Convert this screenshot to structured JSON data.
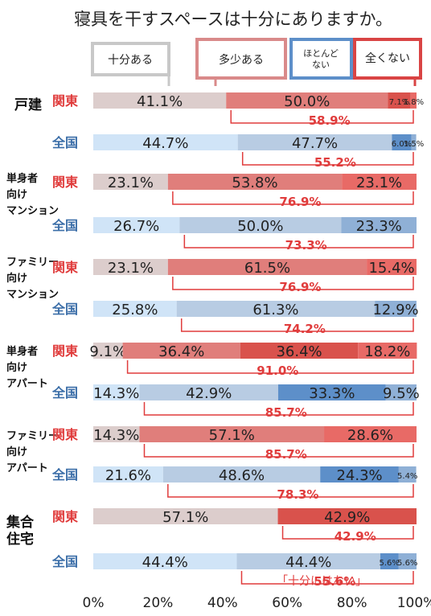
{
  "chart_data": {
    "type": "bar",
    "stacked": "horizontal-100%",
    "title": "寝具を干すスペースは十分にありますか。",
    "legend": [
      "十分ある",
      "多少ある",
      "ほとんど ない",
      "全くない"
    ],
    "region_labels": {
      "kanto": "関東",
      "zenkoku": "全国"
    },
    "groups": [
      {
        "category": "戸建",
        "rows": [
          {
            "region": "関東",
            "values": [
              41.1,
              50.0,
              7.1,
              1.8
            ],
            "labels": [
              "41.1%",
              "50.0%",
              "7.1%",
              "1.8%"
            ],
            "subtotal": "58.9%"
          },
          {
            "region": "全国",
            "values": [
              44.7,
              47.7,
              6.0,
              1.5
            ],
            "labels": [
              "44.7%",
              "47.7%",
              "6.0%",
              "1.5%"
            ],
            "subtotal": "55.2%"
          }
        ]
      },
      {
        "category": "単身者 向け マンション",
        "rows": [
          {
            "region": "関東",
            "values": [
              23.1,
              53.8,
              0,
              23.1
            ],
            "labels": [
              "23.1%",
              "53.8%",
              "",
              "23.1%"
            ],
            "subtotal": "76.9%"
          },
          {
            "region": "全国",
            "values": [
              26.7,
              50.0,
              0,
              23.3
            ],
            "labels": [
              "26.7%",
              "50.0%",
              "",
              "23.3%"
            ],
            "subtotal": "73.3%"
          }
        ]
      },
      {
        "category": "ファミリー 向け マンション",
        "rows": [
          {
            "region": "関東",
            "values": [
              23.1,
              61.5,
              0,
              15.4
            ],
            "labels": [
              "23.1%",
              "61.5%",
              "",
              "15.4%"
            ],
            "subtotal": "76.9%"
          },
          {
            "region": "全国",
            "values": [
              25.8,
              61.3,
              0,
              12.9
            ],
            "labels": [
              "25.8%",
              "61.3%",
              "",
              "12.9%"
            ],
            "subtotal": "74.2%"
          }
        ]
      },
      {
        "category": "単身者 向け アパート",
        "rows": [
          {
            "region": "関東",
            "values": [
              9.1,
              36.4,
              36.4,
              18.2
            ],
            "labels": [
              "9.1%",
              "36.4%",
              "36.4%",
              "18.2%"
            ],
            "subtotal": "91.0%"
          },
          {
            "region": "全国",
            "values": [
              14.3,
              42.9,
              33.3,
              9.5
            ],
            "labels": [
              "14.3%",
              "42.9%",
              "33.3%",
              "9.5%"
            ],
            "subtotal": "85.7%"
          }
        ]
      },
      {
        "category": "ファミリー 向け アパート",
        "rows": [
          {
            "region": "関東",
            "values": [
              14.3,
              57.1,
              0,
              28.6
            ],
            "labels": [
              "14.3%",
              "57.1%",
              "",
              "28.6%"
            ],
            "subtotal": "85.7%"
          },
          {
            "region": "全国",
            "values": [
              21.6,
              48.6,
              24.3,
              5.4
            ],
            "labels": [
              "21.6%",
              "48.6%",
              "24.3%",
              "5.4%"
            ],
            "subtotal": "78.3%"
          }
        ]
      },
      {
        "category": "集合 住宅",
        "rows": [
          {
            "region": "関東",
            "values": [
              57.1,
              0,
              42.9,
              0
            ],
            "labels": [
              "57.1%",
              "",
              "42.9%",
              ""
            ],
            "subtotal": "42.9%"
          },
          {
            "region": "全国",
            "values": [
              44.4,
              44.4,
              5.6,
              5.6
            ],
            "labels": [
              "44.4%",
              "44.4%",
              "5.6%",
              "5.6%"
            ],
            "subtotal": "55.6%"
          }
        ]
      }
    ],
    "x_ticks": [
      "0%",
      "20%",
      "40%",
      "60%",
      "80%",
      "100%"
    ],
    "note": "「十分にはない」",
    "colors": {
      "kanto": [
        "#dccdcc",
        "#e07e7b",
        "#d9524c",
        "#e86a66"
      ],
      "zenkoku": [
        "#d0e4f7",
        "#b8cce3",
        "#5d8fc9",
        "#8fb0d6"
      ],
      "accent": "#e03c3c",
      "legend_borders": [
        "#c8c8c8",
        "#d98a8a",
        "#5d8fc9",
        "#d94444"
      ]
    }
  }
}
